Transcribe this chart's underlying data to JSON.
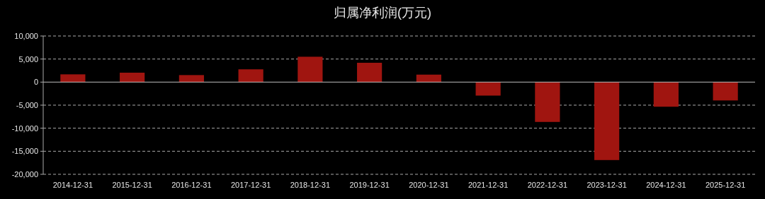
{
  "chart_data": {
    "type": "bar",
    "title": "归属净利润(万元)",
    "categories": [
      "2014-12-31",
      "2015-12-31",
      "2016-12-31",
      "2017-12-31",
      "2018-12-31",
      "2019-12-31",
      "2020-12-31",
      "2021-12-31",
      "2022-12-31",
      "2023-12-31",
      "2024-12-31",
      "2025-12-31"
    ],
    "values": [
      1680,
      2040,
      1520,
      2770,
      5500,
      4190,
      1620,
      -2930,
      -8640,
      -16910,
      -5340,
      -3980
    ],
    "color": "#a01510",
    "ylim": [
      -20000,
      10000
    ],
    "yticks": [
      {
        "value": -20000,
        "label": "-20,000"
      },
      {
        "value": -15000,
        "label": "-15,000"
      },
      {
        "value": -10000,
        "label": "-10,000"
      },
      {
        "value": -5000,
        "label": "-5,000"
      },
      0,
      {
        "value": 5000,
        "label": "5,000"
      },
      {
        "value": 10000,
        "label": "10,000"
      }
    ],
    "grid": "y"
  }
}
